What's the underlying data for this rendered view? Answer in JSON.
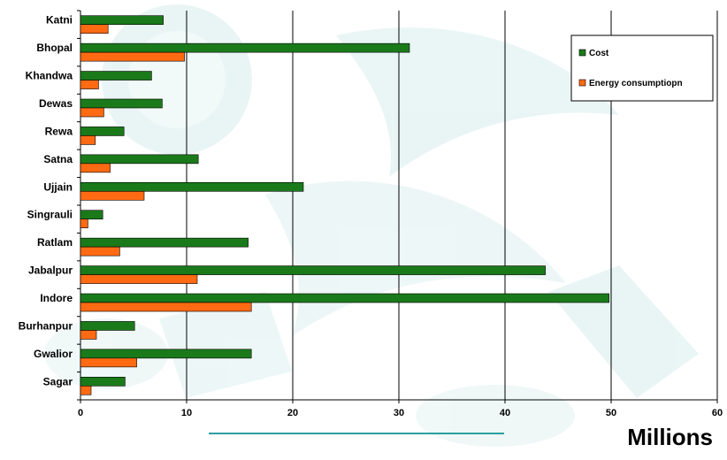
{
  "chart_data": {
    "type": "bar",
    "orientation": "horizontal",
    "categories": [
      "Katni",
      "Bhopal",
      "Khandwa",
      "Dewas",
      "Rewa",
      "Satna",
      "Ujjain",
      "Singrauli",
      "Ratlam",
      "Jabalpur",
      "Indore",
      "Burhanpur",
      "Gwalior",
      "Sagar"
    ],
    "series": [
      {
        "name": "Cost",
        "color": "#1a7a1a",
        "values": [
          7.8,
          31.0,
          6.7,
          7.7,
          4.1,
          11.1,
          21.0,
          2.1,
          15.8,
          43.8,
          49.8,
          5.1,
          16.1,
          4.2
        ]
      },
      {
        "name": "Energy consumptiopn",
        "color": "#ff6a13",
        "values": [
          2.6,
          9.8,
          1.7,
          2.2,
          1.4,
          2.8,
          6.0,
          0.7,
          3.7,
          11.0,
          16.1,
          1.5,
          5.3,
          1.0
        ]
      }
    ],
    "xlim": [
      0,
      60
    ],
    "xticks": [
      "0",
      "10",
      "20",
      "30",
      "40",
      "50",
      "60"
    ],
    "units_label": "Millions",
    "grid": "vertical",
    "legend_position": "top-right"
  },
  "colors": {
    "background_watermark": "#d8eeee",
    "underline_accent": "#2aa0a0"
  }
}
